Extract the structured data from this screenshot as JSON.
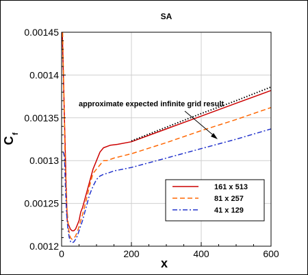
{
  "chart_data": {
    "type": "line",
    "title": "SA",
    "xlabel": "x",
    "ylabel": "C",
    "ylabel_subscript": "f",
    "xlim": [
      0,
      600
    ],
    "ylim": [
      0.0012,
      0.00145
    ],
    "x_ticks": [
      "0",
      "200",
      "400",
      "600"
    ],
    "y_ticks": [
      "0.0012",
      "0.00125",
      "0.0013",
      "0.00135",
      "0.0014",
      "0.00145"
    ],
    "grid": true,
    "legend_position": "bottom-right",
    "annotation": "approximate expected infinite grid result",
    "series": [
      {
        "name": "161 x 513",
        "color": "#cc0000",
        "dash": "solid",
        "x": [
          2,
          4,
          6,
          8,
          10,
          13,
          16,
          20,
          25,
          30,
          35,
          40,
          45,
          50,
          55,
          60,
          70,
          80,
          90,
          100,
          110,
          120,
          140,
          160,
          200,
          300,
          400,
          500,
          600
        ],
        "y": [
          0.00145,
          0.00142,
          0.001385,
          0.00135,
          0.00132,
          0.00127,
          0.00123,
          0.001225,
          0.00122,
          0.001218,
          0.001218,
          0.00122,
          0.001225,
          0.00123,
          0.00124,
          0.001245,
          0.00126,
          0.001275,
          0.00129,
          0.0013,
          0.00131,
          0.001315,
          0.001318,
          0.001319,
          0.001322,
          0.001337,
          0.001352,
          0.001367,
          0.001382
        ]
      },
      {
        "name": "81 x 257",
        "color": "#ff6600",
        "dash": "dashed",
        "x": [
          3,
          5,
          8,
          10,
          15,
          20,
          25,
          30,
          35,
          40,
          45,
          50,
          55,
          60,
          70,
          80,
          90,
          100,
          110,
          120,
          130,
          150,
          200,
          300,
          400,
          500,
          600
        ],
        "y": [
          0.00145,
          0.00141,
          0.00135,
          0.0013,
          0.001245,
          0.00122,
          0.00121,
          0.001208,
          0.001209,
          0.001212,
          0.001217,
          0.001223,
          0.00123,
          0.001237,
          0.001253,
          0.00127,
          0.001285,
          0.00129,
          0.001295,
          0.0013,
          0.0013,
          0.001303,
          0.001308,
          0.001321,
          0.001335,
          0.001348,
          0.001362
        ]
      },
      {
        "name": "41 x 129",
        "color": "#2233cc",
        "dash": "dashdot",
        "x": [
          5,
          8,
          11,
          14,
          18,
          22,
          26,
          30,
          35,
          40,
          45,
          50,
          55,
          60,
          70,
          80,
          90,
          100,
          110,
          120,
          130,
          150,
          200,
          300,
          400,
          500,
          600
        ],
        "y": [
          0.00131,
          0.001305,
          0.00127,
          0.00124,
          0.00122,
          0.00121,
          0.001205,
          0.001204,
          0.001205,
          0.001208,
          0.001212,
          0.001218,
          0.001224,
          0.00123,
          0.001245,
          0.00126,
          0.00127,
          0.001278,
          0.001282,
          0.001284,
          0.001285,
          0.001288,
          0.001292,
          0.001303,
          0.001314,
          0.001325,
          0.001337
        ]
      },
      {
        "name": "",
        "color": "#000000",
        "dash": "dotted",
        "x": [
          200,
          300,
          400,
          500,
          600
        ],
        "y": [
          0.001323,
          0.001339,
          0.001355,
          0.00137,
          0.001386
        ]
      }
    ]
  }
}
